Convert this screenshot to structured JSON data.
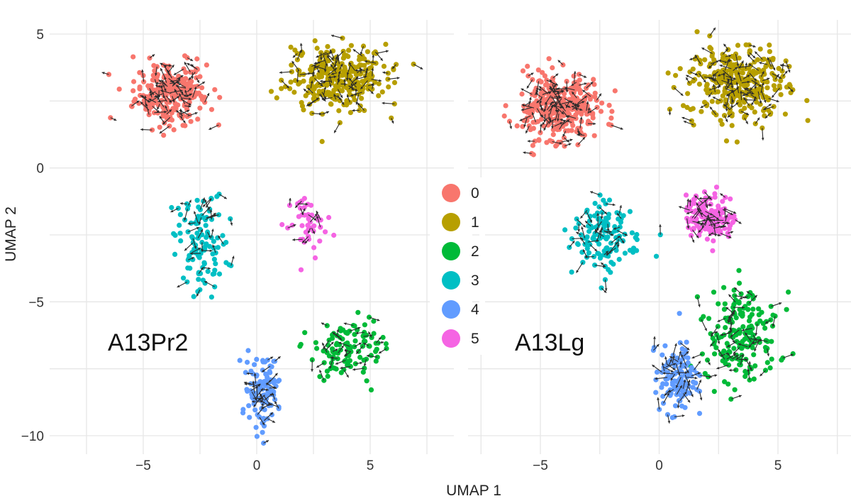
{
  "figure": {
    "x_axis_title": "UMAP 1",
    "y_axis_title": "UMAP 2"
  },
  "legend": {
    "entries": [
      {
        "label": "0",
        "color": "#F8766D"
      },
      {
        "label": "1",
        "color": "#B79F00"
      },
      {
        "label": "2",
        "color": "#00BA38"
      },
      {
        "label": "3",
        "color": "#00BFC4"
      },
      {
        "label": "4",
        "color": "#619CFF"
      },
      {
        "label": "5",
        "color": "#F564E3"
      }
    ]
  },
  "chart_data": [
    {
      "type": "scatter",
      "panel_label": "A13Pr2",
      "xlabel": "UMAP 1",
      "ylabel": "UMAP 2",
      "x_ticks": [
        -5,
        0,
        5
      ],
      "y_ticks": [
        5,
        0,
        -5,
        -10
      ],
      "x_tick_labels": [
        "−5",
        "0",
        "5"
      ],
      "y_tick_labels": [
        "5",
        "0",
        "−5",
        "−10"
      ],
      "xlim": [
        -7.8,
        7.8
      ],
      "ylim": [
        -10.4,
        5.6
      ],
      "grid": true,
      "overlay": "velocity arrows",
      "clusters": [
        {
          "name": "0",
          "center": [
            -3.8,
            2.8
          ],
          "spread": [
            1.3,
            1.0
          ],
          "n": 260
        },
        {
          "name": "1",
          "center": [
            3.5,
            3.4
          ],
          "spread": [
            1.8,
            1.0
          ],
          "n": 300
        },
        {
          "name": "2",
          "center": [
            4.0,
            -6.8
          ],
          "spread": [
            1.2,
            1.0
          ],
          "n": 110
        },
        {
          "name": "3",
          "center": [
            -2.5,
            -2.8
          ],
          "spread": [
            1.0,
            1.5
          ],
          "n": 110
        },
        {
          "name": "4",
          "center": [
            0.2,
            -8.3
          ],
          "spread": [
            0.6,
            1.1
          ],
          "n": 110
        },
        {
          "name": "5",
          "center": [
            2.3,
            -2.0
          ],
          "spread": [
            0.7,
            0.8
          ],
          "n": 45
        }
      ]
    },
    {
      "type": "scatter",
      "panel_label": "A13Lg",
      "xlabel": "UMAP 1",
      "ylabel": "UMAP 2",
      "x_ticks": [
        -5,
        0,
        5
      ],
      "x_tick_labels": [
        "−5",
        "0",
        "5"
      ],
      "xlim": [
        -7.8,
        7.8
      ],
      "ylim": [
        -10.4,
        5.6
      ],
      "grid": true,
      "overlay": "velocity arrows",
      "clusters": [
        {
          "name": "0",
          "center": [
            -4.3,
            2.3
          ],
          "spread": [
            1.4,
            1.0
          ],
          "n": 320
        },
        {
          "name": "1",
          "center": [
            3.2,
            3.2
          ],
          "spread": [
            1.8,
            1.1
          ],
          "n": 320
        },
        {
          "name": "2",
          "center": [
            3.5,
            -6.2
          ],
          "spread": [
            1.3,
            1.5
          ],
          "n": 180
        },
        {
          "name": "3",
          "center": [
            -2.3,
            -2.7
          ],
          "spread": [
            1.1,
            1.0
          ],
          "n": 130
        },
        {
          "name": "4",
          "center": [
            0.7,
            -7.8
          ],
          "spread": [
            0.7,
            1.1
          ],
          "n": 130
        },
        {
          "name": "5",
          "center": [
            2.2,
            -1.8
          ],
          "spread": [
            0.9,
            0.7
          ],
          "n": 150
        }
      ]
    }
  ]
}
